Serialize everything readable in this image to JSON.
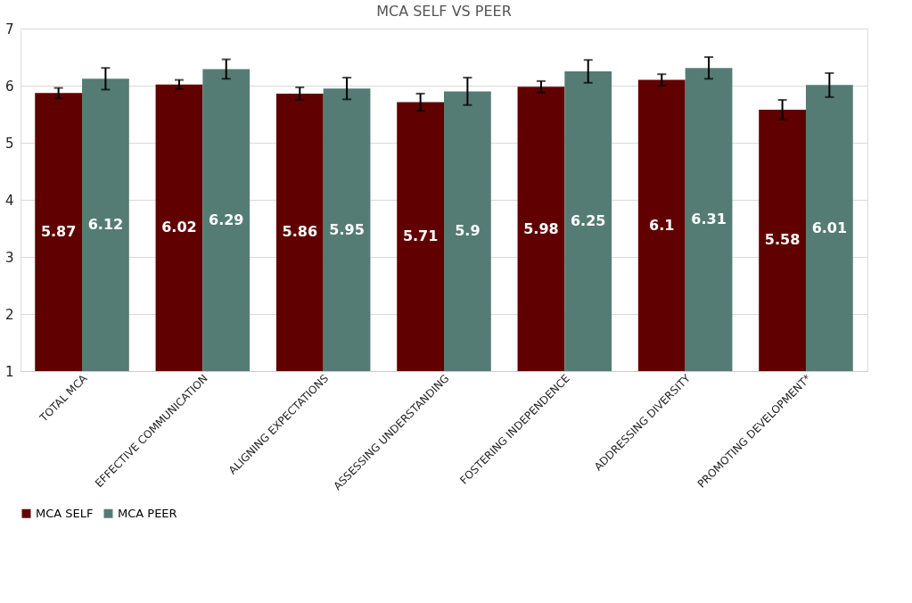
{
  "chart_data": {
    "type": "bar",
    "title": "MCA SELF VS PEER",
    "categories": [
      "TOTAL MCA",
      "EFFECTIVE COMMUNICATION",
      "ALIGNING EXPECTATIONS",
      "ASSESSING UNDERSTANDING",
      "FOSTERING INDEPENDENCE",
      "ADDRESSING DIVERSITY",
      "PROMOTING DEVELOPMENT*"
    ],
    "series": [
      {
        "name": "MCA SELF",
        "color": "#600000",
        "values": [
          5.87,
          6.02,
          5.86,
          5.71,
          5.98,
          6.1,
          5.58
        ],
        "errors": [
          0.09,
          0.08,
          0.11,
          0.15,
          0.1,
          0.1,
          0.17
        ]
      },
      {
        "name": "MCA PEER",
        "color": "#557c74",
        "values": [
          6.12,
          6.29,
          5.95,
          5.9,
          6.25,
          6.31,
          6.01
        ],
        "errors": [
          0.19,
          0.17,
          0.19,
          0.24,
          0.2,
          0.19,
          0.21
        ]
      }
    ],
    "ylim": [
      1,
      7
    ],
    "yticks": [
      1,
      2,
      3,
      4,
      5,
      6,
      7
    ],
    "grid": "y",
    "legend": "bottom",
    "data_labels": true
  }
}
